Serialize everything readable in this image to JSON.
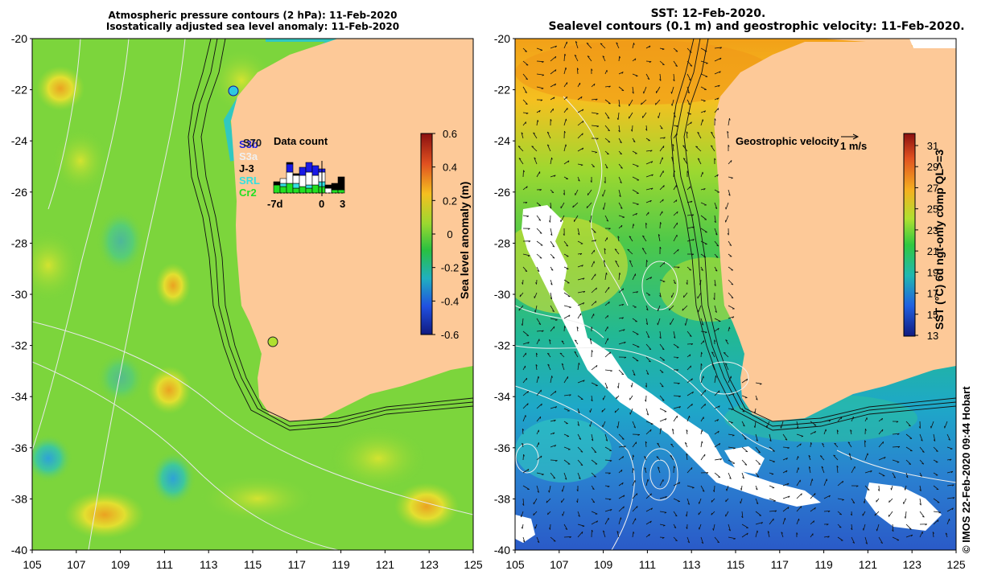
{
  "left_panel": {
    "title_line1": "Atmospheric pressure contours (2 hPa): 11-Feb-2020",
    "title_line2": "Isostatically adjusted sea level anomaly: 11-Feb-2020",
    "colorbar": {
      "label": "Sea level anomaly (m)",
      "ticks": [
        "0.6",
        "0.4",
        "0.2",
        "0",
        "-0.2",
        "-0.4",
        "-0.6"
      ]
    },
    "data_count": {
      "title": "Data count",
      "axis_labels": [
        "-7d",
        "0",
        "3"
      ],
      "legend": [
        {
          "label": "S3b",
          "color": "#1a1ae6"
        },
        {
          "label": "S3a",
          "color": "#f0f0f0"
        },
        {
          "label": "J-3",
          "color": "#000000"
        },
        {
          "label": "SRL",
          "color": "#33e0e0"
        },
        {
          "label": "Cr2",
          "color": "#22e022"
        }
      ],
      "extra_label": "S70"
    }
  },
  "right_panel": {
    "title_line1": "SST: 12-Feb-2020.",
    "title_line2": "Sealevel contours (0.1 m) and geostrophic velocity: 11-Feb-2020.",
    "colorbar": {
      "label": "SST (°C) 6d ngt-only comp QL>=3",
      "ticks": [
        "31",
        "29",
        "27",
        "25",
        "23",
        "21",
        "19",
        "17",
        "15",
        "13"
      ]
    },
    "velocity_legend": {
      "label": "Geostrophic velocity",
      "scale": "1 m/s"
    }
  },
  "axes": {
    "lat_labels": [
      "-20",
      "-22",
      "-24",
      "-26",
      "-28",
      "-30",
      "-32",
      "-34",
      "-36",
      "-38",
      "-40"
    ],
    "lon_labels": [
      "105",
      "107",
      "109",
      "111",
      "113",
      "115",
      "117",
      "119",
      "121",
      "123",
      "125"
    ]
  },
  "credit": "© IMOS 22-Feb-2020 09:44 Hobart",
  "colors": {
    "land": "#fdc998",
    "ocean_sla": "#7cd53c",
    "ocean_sst_warm": "#f0a020",
    "ocean_sst_cool": "#2a9ed8"
  }
}
